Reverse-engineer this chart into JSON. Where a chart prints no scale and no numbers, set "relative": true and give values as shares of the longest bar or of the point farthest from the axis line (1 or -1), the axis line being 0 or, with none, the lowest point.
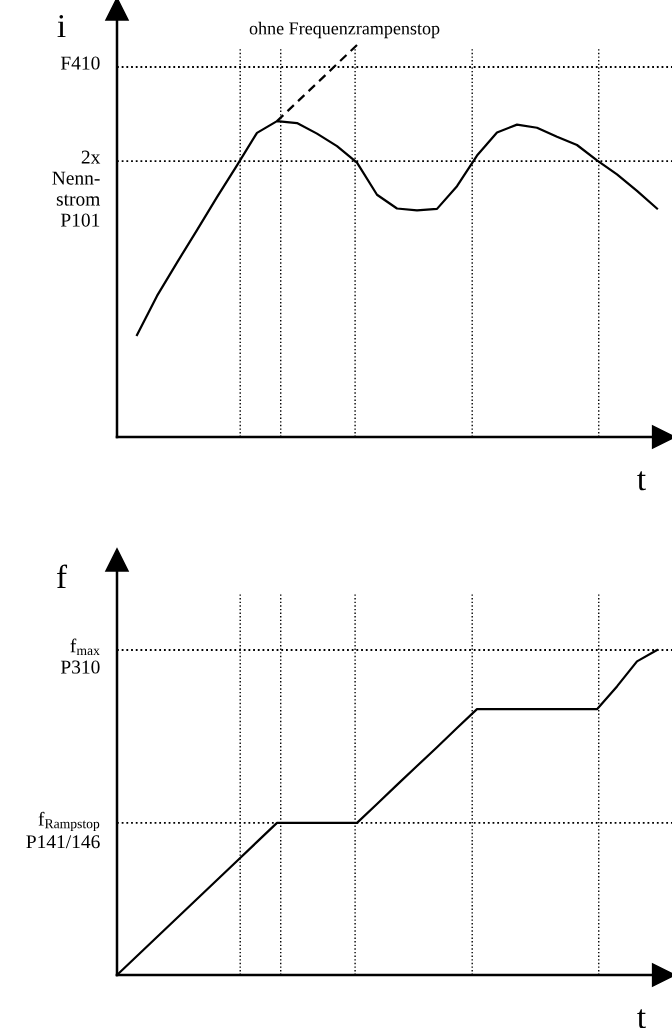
{
  "chart_data": [
    {
      "type": "line",
      "relative": true,
      "ylabel": "i",
      "xlabel": "t",
      "tick_labels": false,
      "categories": [
        null,
        null,
        null,
        null,
        null,
        null,
        null,
        null,
        null,
        null,
        null,
        null,
        null,
        null,
        null,
        null,
        null,
        null,
        null,
        null,
        null,
        null,
        null,
        null,
        null,
        null,
        null,
        null
      ],
      "series": [
        {
          "color": "#000000",
          "line_style": "solid",
          "values": [
            null,
            0.26,
            0.36,
            0.445,
            0.528,
            0.612,
            0.693,
            0.776,
            0.806,
            0.801,
            0.774,
            0.742,
            0.7,
            0.618,
            0.583,
            0.578,
            0.582,
            0.64,
            0.718,
            0.777,
            0.797,
            0.789,
            0.766,
            0.745,
            0.706,
            0.67,
            0.628,
            0.583
          ]
        },
        {
          "color": "#000000",
          "line_style": "dashed",
          "values": [
            null,
            null,
            null,
            null,
            null,
            null,
            null,
            null,
            0.806,
            null,
            null,
            null,
            1.0,
            null,
            null,
            null,
            null,
            null,
            null,
            null,
            null,
            null,
            null,
            null,
            null,
            null,
            null,
            null
          ]
        }
      ],
      "ref_lines": [
        {
          "axis": "y",
          "value": 0.944,
          "label": "F410",
          "line_style": "dotted",
          "color": "#000000"
        },
        {
          "axis": "y",
          "value": 0.704,
          "label": "2x\nNenn-\nstrom\nP101",
          "line_style": "dotted",
          "color": "#000000"
        }
      ],
      "annotations": [
        "ohne Frequenzrampenstop"
      ]
    },
    {
      "type": "line",
      "relative": true,
      "ylabel": "f",
      "xlabel": "t",
      "tick_labels": false,
      "categories": [
        null,
        null,
        null,
        null,
        null,
        null,
        null,
        null,
        null,
        null,
        null,
        null,
        null,
        null,
        null,
        null,
        null,
        null,
        null,
        null,
        null,
        null,
        null,
        null,
        null,
        null,
        null,
        null
      ],
      "series": [
        {
          "color": "#000000",
          "line_style": "solid",
          "values": [
            0,
            0.0585,
            0.117,
            0.1755,
            0.234,
            0.2925,
            0.351,
            0.4095,
            0.468,
            0.468,
            0.468,
            0.468,
            0.468,
            0.526,
            0.585,
            0.643,
            0.701,
            0.76,
            0.818,
            0.818,
            0.818,
            0.818,
            0.818,
            0.818,
            0.818,
            0.888,
            0.965,
            1.0
          ]
        }
      ],
      "ref_lines": [
        {
          "axis": "y",
          "value": 1.0,
          "label": "f$_{max}$\nP310",
          "line_style": "dotted",
          "color": "#000000"
        },
        {
          "axis": "y",
          "value": 0.468,
          "label": "f$_{Rampstop}$\nP141/146",
          "line_style": "dotted",
          "color": "#000000"
        }
      ]
    }
  ]
}
